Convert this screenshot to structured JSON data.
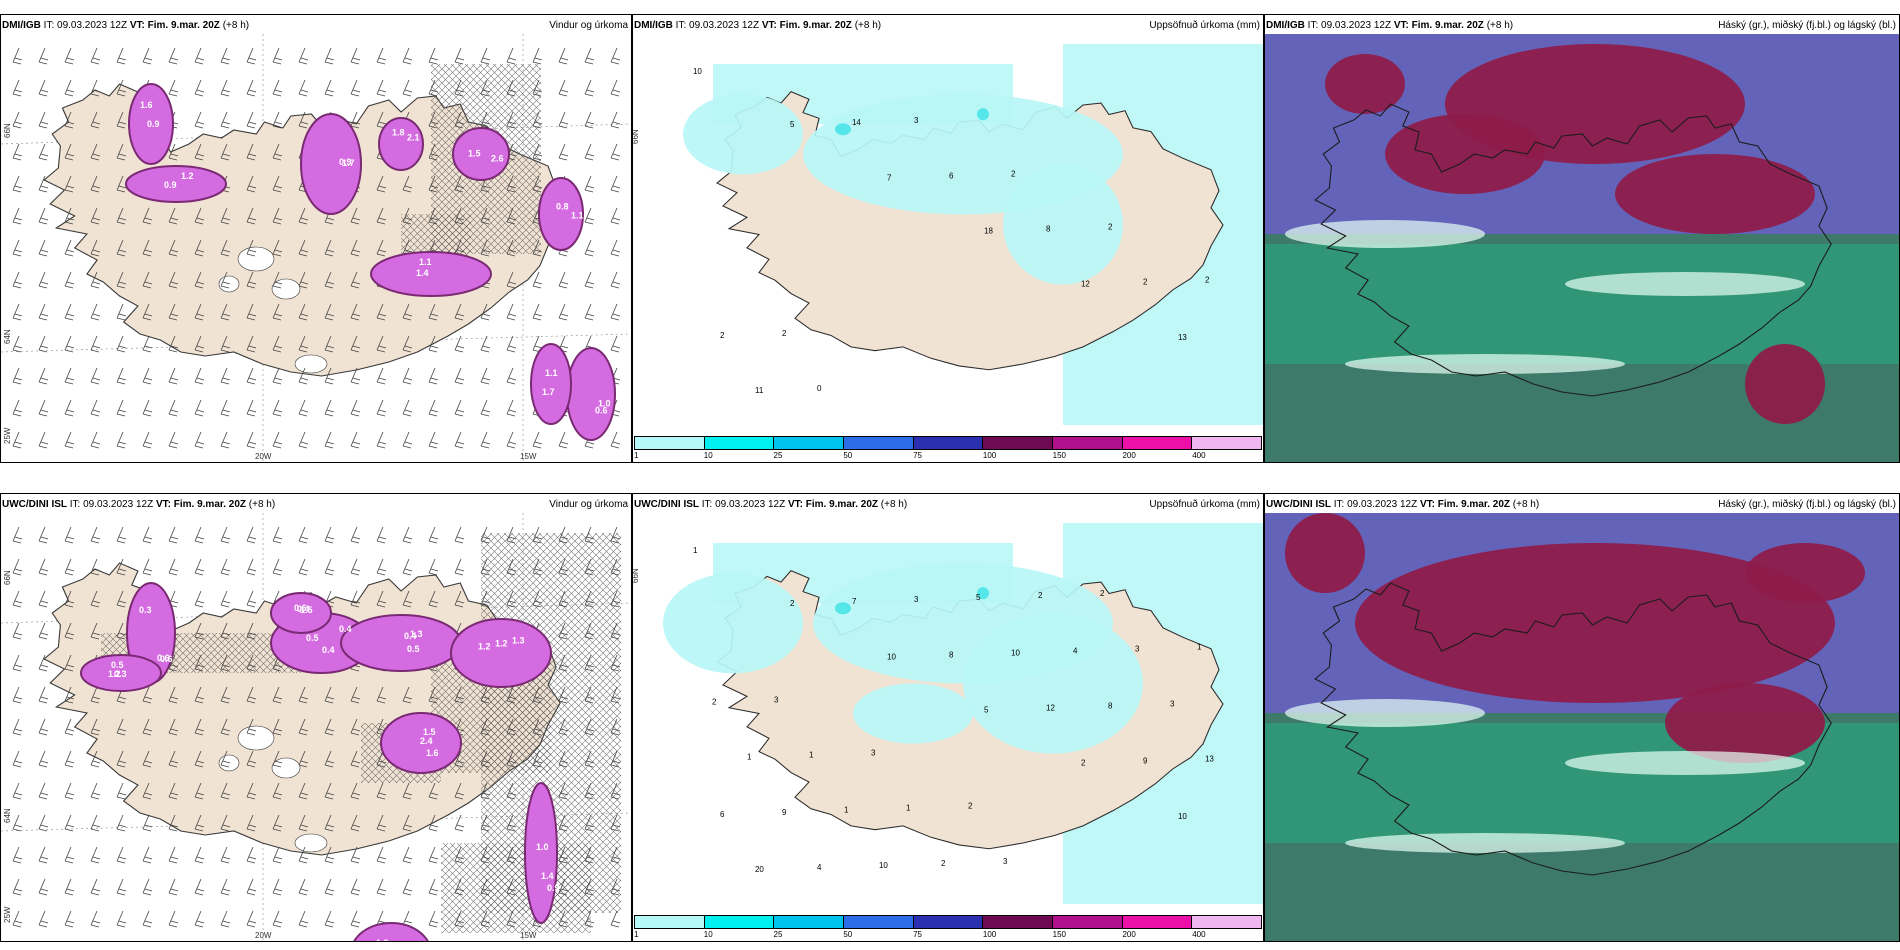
{
  "colors": {
    "land": "#f1e3d3",
    "precip_purple": "#d46be0",
    "precip_dark": "#7a2a73",
    "accum_cyan": "#b9f6f6",
    "accum_mid": "#55e6ea",
    "cloud_high": "#8e1c4a",
    "cloud_mid": "#6a5fc8",
    "cloud_low": "#2f9b78",
    "sea_cloud": "#3d7a6a"
  },
  "legend_colors": [
    "#b4f8f8",
    "#00f0f0",
    "#00c4ec",
    "#2c6ee8",
    "#2a30b0",
    "#6e0a52",
    "#b0108c",
    "#ec10a8",
    "#f0b6f0"
  ],
  "legend_ticks": [
    "1",
    "10",
    "25",
    "50",
    "75",
    "100",
    "150",
    "200",
    "400"
  ],
  "axis": {
    "lon_20w": "20W",
    "lon_15w": "15W",
    "lat_66n": "66N",
    "lat_64n": "64N",
    "lon_25w": "25W"
  },
  "panels": {
    "p1": {
      "source": "DMI/IGB",
      "it": "IT: 09.03.2023 12Z",
      "vt": "VT: Fim. 9.mar. 20Z",
      "lead": "(+8 h)",
      "title": "Vindur og úrkoma",
      "values": [
        "1.6",
        "0.9",
        "1.7",
        "2.1",
        "2.6",
        "1.1",
        "1.1",
        "1.0",
        "1.1",
        "0.9",
        "1.2",
        "0.9",
        "1.8",
        "1.5",
        "0.8",
        "1.4",
        "0.6",
        "1.7"
      ]
    },
    "p2": {
      "source": "DMI/IGB",
      "it": "IT: 09.03.2023 12Z",
      "vt": "VT: Fim. 9.mar. 20Z",
      "lead": "(+8 h)",
      "title": "Uppsöfnuð úrkoma (mm)",
      "values": [
        "10",
        "5",
        "7",
        "18",
        "12",
        "13",
        "11",
        "14",
        "6",
        "8",
        "2",
        "2",
        "0",
        "3",
        "2",
        "2",
        "2",
        "2"
      ]
    },
    "p3": {
      "source": "DMI/IGB",
      "it": "IT: 09.03.2023 12Z",
      "vt": "VT: Fim. 9.mar. 20Z",
      "lead": "(+8 h)",
      "title": "Háský (gr.), miðský (fj.bl.) og lágský (bl.)"
    },
    "p4": {
      "source": "UWC/DINI ISL",
      "it": "IT: 09.03.2023 12Z",
      "vt": "VT: Fim. 9.mar. 20Z",
      "lead": "(+8 h)",
      "title": "Vindur og úrkoma",
      "values": [
        "0.3",
        "0.3",
        "0.4",
        "1.3",
        "1.2",
        "1.6",
        "0.9",
        "0.7",
        "1.5",
        "0.6",
        "0.5",
        "0.4",
        "0.5",
        "1.2",
        "1.5",
        "1.0",
        "0.7",
        "0.4",
        "0.6",
        "1.2",
        "0.5",
        "0.4",
        "1.3",
        "2.4",
        "1.4",
        "1.2",
        "0.6"
      ]
    },
    "p5": {
      "source": "UWC/DINI ISL",
      "it": "IT: 09.03.2023 12Z",
      "vt": "VT: Fim. 9.mar. 20Z",
      "lead": "(+8 h)",
      "title": "Uppsöfnuð úrkoma (mm)",
      "values": [
        "1",
        "2",
        "10",
        "5",
        "2",
        "10",
        "20",
        "7",
        "8",
        "12",
        "9",
        "6",
        "4",
        "3",
        "10",
        "8",
        "13",
        "9",
        "10",
        "5",
        "4",
        "3",
        "1",
        "1",
        "2",
        "2",
        "3",
        "2",
        "1",
        "1",
        "3",
        "2",
        "1",
        "3",
        "3",
        "2"
      ]
    },
    "p6": {
      "source": "UWC/DINI ISL",
      "it": "IT: 09.03.2023 12Z",
      "vt": "VT: Fim. 9.mar. 20Z",
      "lead": "(+8 h)",
      "title": "Háský (gr.), miðský (fj.bl.) og lágský (bl.)"
    }
  }
}
